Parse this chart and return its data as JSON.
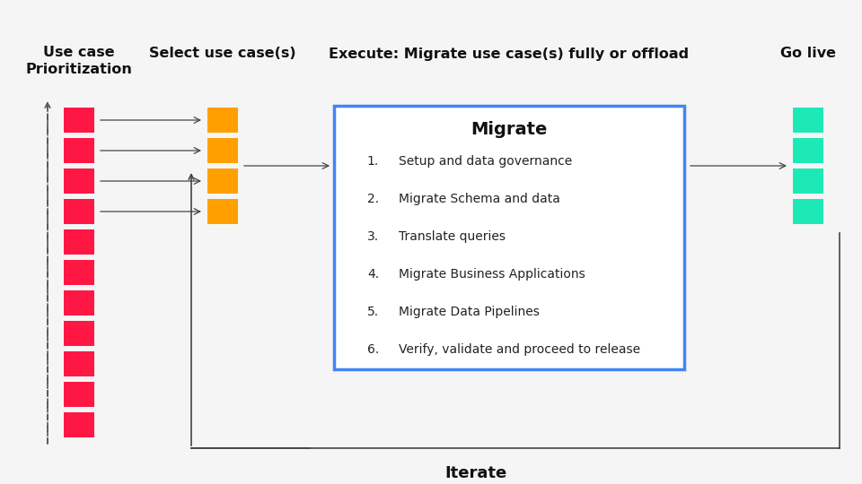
{
  "bg_color": "#f5f5f5",
  "title_col1": "Use case\nPrioritization",
  "title_col2": "Select use case(s)",
  "title_col3": "Execute: Migrate use case(s) fully or offload",
  "title_col4": "Go live",
  "red_color": "#FF1744",
  "orange_color": "#FFA000",
  "green_color": "#1DE9B6",
  "blue_border": "#4285F4",
  "arrow_color": "#444444",
  "dashed_line_color": "#555555",
  "migrate_title": "Migrate",
  "migrate_steps": [
    "Setup and data governance",
    "Migrate Schema and data",
    "Translate queries",
    "Migrate Business Applications",
    "Migrate Data Pipelines",
    "Verify, validate and proceed to release"
  ],
  "iterate_label": "Iterate",
  "red_blocks": 11,
  "orange_blocks": 4,
  "green_blocks": 4,
  "font_family": "DejaVu Sans"
}
